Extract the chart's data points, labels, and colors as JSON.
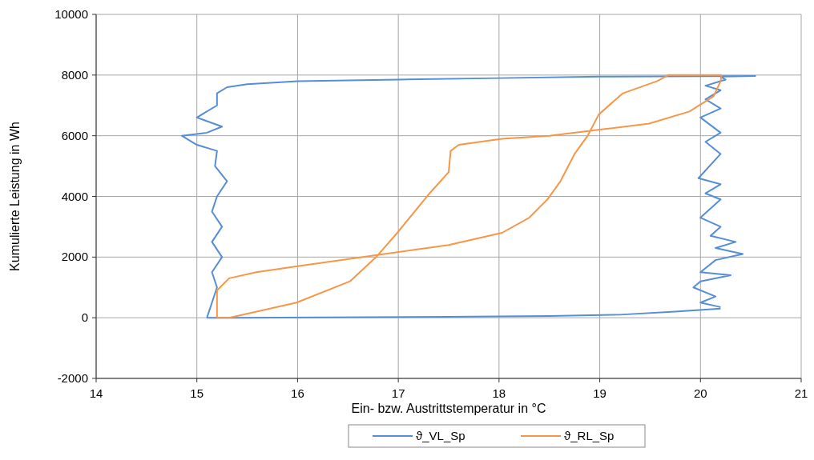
{
  "chart_data": {
    "type": "line",
    "xlabel": "Ein- bzw. Austrittstemperatur in °C",
    "ylabel": "Kumulierte Leistung in Wh",
    "xlim": [
      14,
      21
    ],
    "xticks": [
      14,
      15,
      16,
      17,
      18,
      19,
      20,
      21
    ],
    "ylim": [
      -2000,
      10000
    ],
    "yticks": [
      -2000,
      0,
      2000,
      4000,
      6000,
      8000,
      10000
    ],
    "grid": true,
    "legend": "bottom",
    "marker": "none",
    "line_style": "solid",
    "series": [
      {
        "name": "ϑ_VL_Sp",
        "color": "#558ed5",
        "x": [
          15.1,
          15.15,
          15.2,
          15.15,
          15.25,
          15.15,
          15.25,
          15.15,
          15.2,
          15.3,
          15.18,
          15.2,
          15.0,
          14.85,
          15.1,
          15.25,
          15.0,
          15.2,
          15.2,
          15.3,
          15.5,
          16.0,
          17.0,
          18.0,
          19.0,
          20.55,
          null,
          20.55,
          20.2,
          20.25,
          20.05,
          20.2,
          20.05,
          20.2,
          20.0,
          20.2,
          20.05,
          20.2,
          19.98,
          20.2,
          20.05,
          20.2,
          20.0,
          20.2,
          20.1,
          20.35,
          20.15,
          20.42,
          20.15,
          20.0,
          20.3,
          20.0,
          19.93,
          20.15,
          20.0,
          20.2,
          null,
          20.2,
          19.75,
          19.2,
          18.5,
          17.5,
          15.4,
          15.1
        ],
        "values": [
          0,
          500,
          1000,
          1500,
          2000,
          2500,
          3000,
          3500,
          4000,
          4500,
          5000,
          5500,
          5700,
          6000,
          6100,
          6300,
          6600,
          7000,
          7400,
          7600,
          7700,
          7800,
          7850,
          7900,
          7950,
          7970,
          null,
          7970,
          7950,
          7850,
          7650,
          7500,
          7200,
          6900,
          6600,
          6100,
          5800,
          5400,
          4600,
          4400,
          4100,
          3900,
          3300,
          3000,
          2700,
          2500,
          2300,
          2100,
          1900,
          1500,
          1400,
          1200,
          1000,
          700,
          500,
          350,
          null,
          300,
          200,
          100,
          60,
          30,
          0,
          0
        ]
      },
      {
        "name": "ϑ_RL_Sp",
        "color": "#f79646",
        "x": [
          15.2,
          15.2,
          15.32,
          15.59,
          16.0,
          16.65,
          17.5,
          18.03,
          18.3,
          18.48,
          18.61,
          18.75,
          18.88,
          18.99,
          19.23,
          19.57,
          19.68,
          20.21,
          null,
          20.21,
          20.2,
          20.13,
          19.89,
          19.49,
          19.0,
          18.5,
          18.03,
          17.6,
          17.52,
          17.5,
          17.31,
          16.99,
          16.78,
          16.52,
          15.99,
          15.32,
          15.2
        ],
        "values": [
          0,
          900,
          1300,
          1500,
          1700,
          2000,
          2400,
          2800,
          3300,
          3900,
          4500,
          5400,
          6000,
          6700,
          7400,
          7800,
          8000,
          8000,
          null,
          8000,
          7800,
          7300,
          6800,
          6400,
          6200,
          6000,
          5900,
          5700,
          5500,
          4800,
          4100,
          2800,
          2000,
          1200,
          500,
          0,
          0
        ]
      }
    ]
  }
}
